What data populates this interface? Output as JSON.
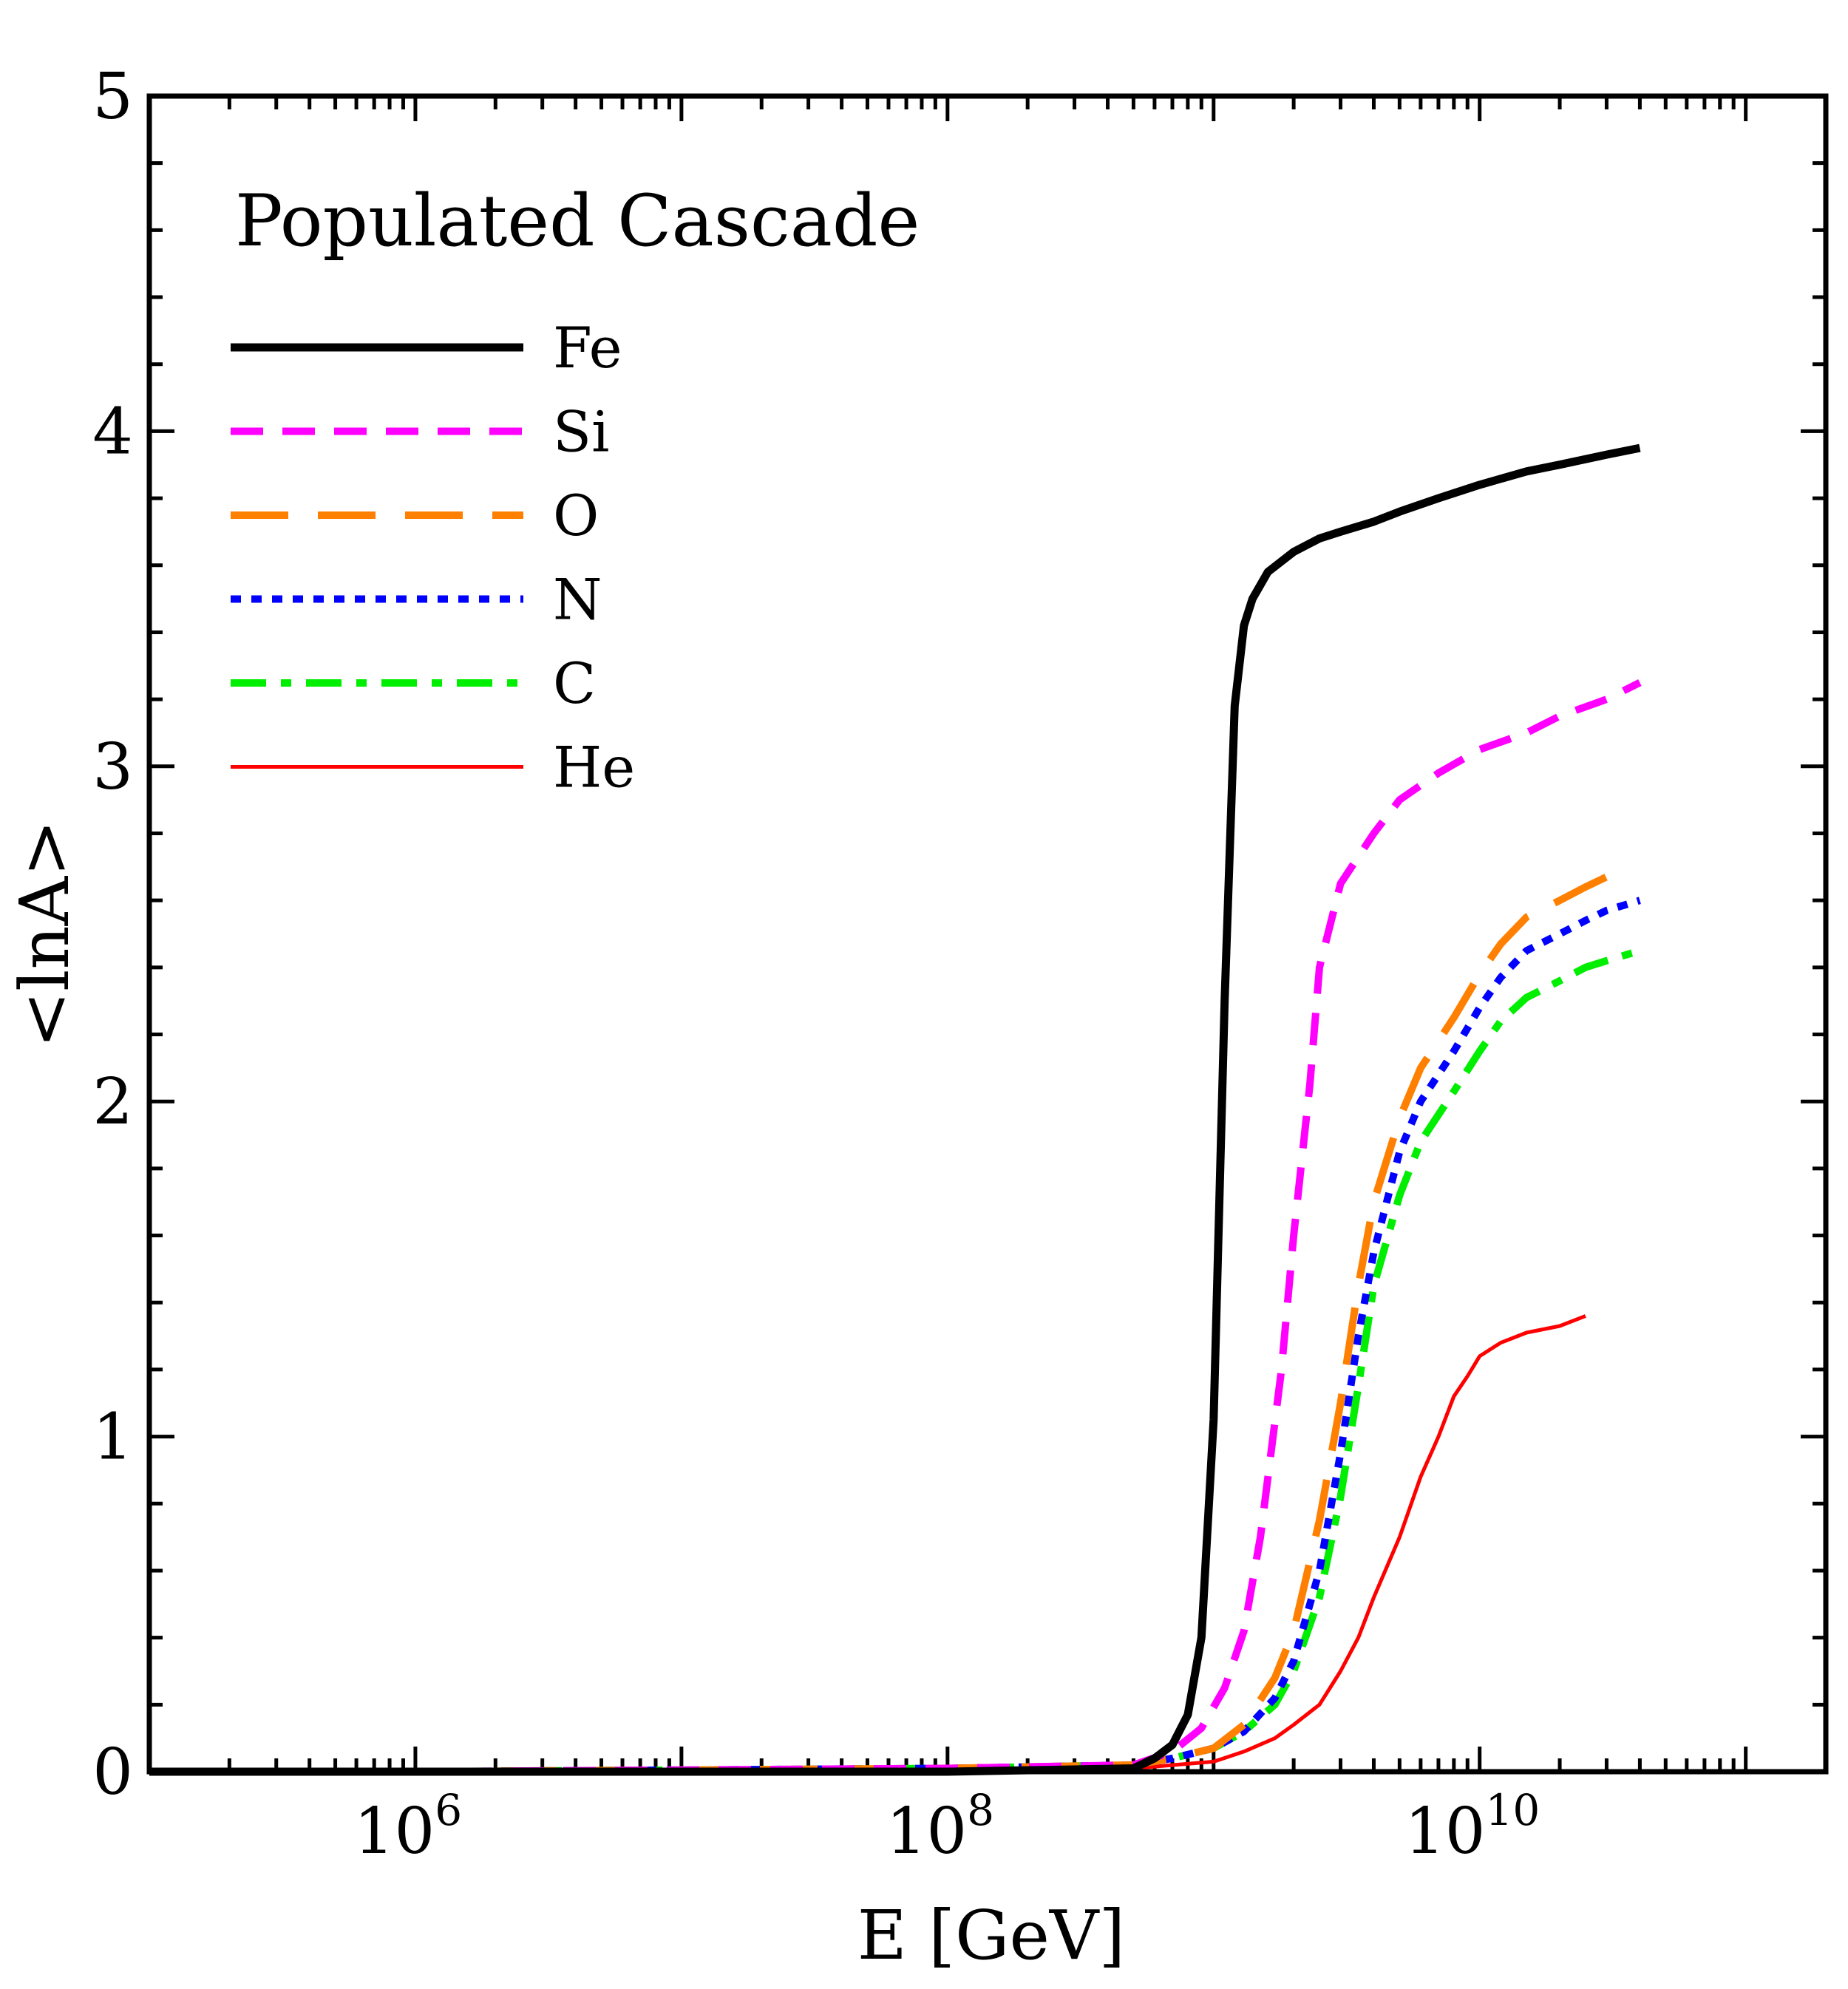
{
  "chart_data": {
    "type": "line",
    "annotation": "Populated Cascade",
    "xlabel": "E [GeV]",
    "ylabel": "<lnA>",
    "xscale": "log",
    "xlim": [
      100000,
      200000000000
    ],
    "ylim": [
      0,
      5
    ],
    "x_ticks": [
      {
        "value": 1000000,
        "base": "10",
        "exp": "6"
      },
      {
        "value": 100000000,
        "base": "10",
        "exp": "8"
      },
      {
        "value": 10000000000,
        "base": "10",
        "exp": "10"
      }
    ],
    "y_ticks": [
      {
        "value": 0,
        "label": "0"
      },
      {
        "value": 1,
        "label": "1"
      },
      {
        "value": 2,
        "label": "2"
      },
      {
        "value": 3,
        "label": "3"
      },
      {
        "value": 4,
        "label": "4"
      },
      {
        "value": 5,
        "label": "5"
      }
    ],
    "legend_position": "top-left",
    "series": [
      {
        "name": "Fe",
        "color": "#000000",
        "style": "solid",
        "width": 11,
        "x": [
          100000,
          1000000,
          100000000,
          500000000,
          600000000,
          700000000,
          800000000,
          900000000,
          1000000000,
          1100000000,
          1200000000,
          1300000000,
          1400000000,
          1600000000,
          2000000000,
          2500000000,
          3000000000,
          4000000000,
          5000000000,
          7000000000,
          10000000000,
          15000000000,
          20000000000,
          30000000000,
          40000000000
        ],
        "y": [
          0.0,
          0.0,
          0.0,
          0.01,
          0.04,
          0.08,
          0.17,
          0.4,
          1.05,
          2.3,
          3.18,
          3.42,
          3.5,
          3.58,
          3.64,
          3.68,
          3.7,
          3.73,
          3.76,
          3.8,
          3.84,
          3.88,
          3.9,
          3.93,
          3.95
        ]
      },
      {
        "name": "Si",
        "color": "#ff00ff",
        "style": "dashed",
        "width": 10,
        "x": [
          100000,
          1000000,
          100000000,
          500000000,
          700000000,
          900000000,
          1100000000,
          1300000000,
          1500000000,
          1800000000,
          2000000000,
          2300000000,
          2500000000,
          3000000000,
          4000000000,
          5000000000,
          7000000000,
          10000000000,
          15000000000,
          20000000000,
          30000000000,
          40000000000
        ],
        "y": [
          0.0,
          0.0,
          0.01,
          0.02,
          0.06,
          0.13,
          0.25,
          0.42,
          0.7,
          1.2,
          1.6,
          2.05,
          2.4,
          2.65,
          2.8,
          2.9,
          2.98,
          3.05,
          3.1,
          3.15,
          3.2,
          3.25
        ]
      },
      {
        "name": "O",
        "color": "#ff8000",
        "style": "long-dashed",
        "width": 10,
        "x": [
          100000,
          1000000,
          100000000,
          500000000,
          700000000,
          1000000000,
          1300000000,
          1700000000,
          2000000000,
          2500000000,
          3000000000,
          3500000000,
          4000000000,
          5000000000,
          6000000000,
          8000000000,
          10000000000,
          12000000000,
          15000000000,
          20000000000,
          25000000000,
          30000000000
        ],
        "y": [
          0.0,
          0.0,
          0.01,
          0.02,
          0.04,
          0.07,
          0.14,
          0.28,
          0.42,
          0.75,
          1.1,
          1.45,
          1.7,
          1.95,
          2.1,
          2.25,
          2.38,
          2.47,
          2.55,
          2.6,
          2.64,
          2.67
        ]
      },
      {
        "name": "N",
        "color": "#0000ff",
        "style": "dotted",
        "width": 10,
        "x": [
          100000,
          1000000,
          100000000,
          500000000,
          700000000,
          1000000000,
          1300000000,
          1700000000,
          2000000000,
          2500000000,
          3000000000,
          3500000000,
          4000000000,
          5000000000,
          6000000000,
          8000000000,
          10000000000,
          12000000000,
          15000000000,
          20000000000,
          25000000000,
          30000000000,
          40000000000
        ],
        "y": [
          0.0,
          0.0,
          0.01,
          0.02,
          0.04,
          0.07,
          0.12,
          0.22,
          0.33,
          0.6,
          0.95,
          1.3,
          1.55,
          1.85,
          2.0,
          2.15,
          2.28,
          2.37,
          2.45,
          2.5,
          2.54,
          2.57,
          2.6
        ]
      },
      {
        "name": "C",
        "color": "#00ee00",
        "style": "dash-dot",
        "width": 10,
        "x": [
          100000,
          1000000,
          100000000,
          500000000,
          700000000,
          1000000000,
          1300000000,
          1700000000,
          2000000000,
          2500000000,
          3000000000,
          3500000000,
          4000000000,
          5000000000,
          6000000000,
          8000000000,
          10000000000,
          12000000000,
          15000000000,
          20000000000,
          25000000000,
          30000000000,
          40000000000
        ],
        "y": [
          0.0,
          0.0,
          0.01,
          0.02,
          0.04,
          0.07,
          0.12,
          0.2,
          0.3,
          0.52,
          0.82,
          1.15,
          1.45,
          1.72,
          1.88,
          2.03,
          2.15,
          2.24,
          2.31,
          2.36,
          2.4,
          2.42,
          2.45
        ]
      },
      {
        "name": "He",
        "color": "#ff0000",
        "style": "solid",
        "width": 5,
        "x": [
          100000,
          1000000,
          100000000,
          500000000,
          1000000000,
          1300000000,
          1700000000,
          2000000000,
          2500000000,
          3000000000,
          3500000000,
          4000000000,
          5000000000,
          6000000000,
          7000000000,
          8000000000,
          9000000000,
          10000000000,
          12000000000,
          15000000000,
          20000000000,
          25000000000
        ],
        "y": [
          0.0,
          0.0,
          0.0,
          0.01,
          0.03,
          0.06,
          0.1,
          0.14,
          0.2,
          0.3,
          0.4,
          0.52,
          0.7,
          0.88,
          1.0,
          1.12,
          1.18,
          1.24,
          1.28,
          1.31,
          1.33,
          1.36
        ]
      }
    ]
  }
}
